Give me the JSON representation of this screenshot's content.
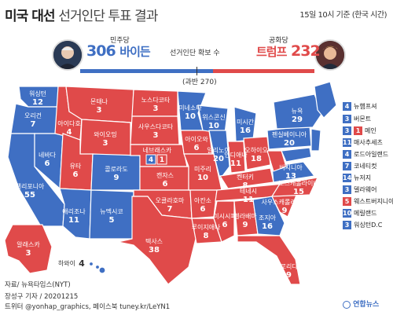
{
  "title": {
    "main": "미국 대선",
    "sub": "선거인단 투표 결과"
  },
  "date_note": "15일 10시 기준 (한국 시간)",
  "candidates": {
    "democrat": {
      "party": "민주당",
      "votes": "306",
      "name": "바이든",
      "color": "#3f6fc3"
    },
    "republican": {
      "party": "공화당",
      "votes": "232",
      "name": "트럼프",
      "color": "#e04a4a"
    }
  },
  "threshold": {
    "label": "선거인단 확보 수",
    "majority": "(과반 270)"
  },
  "states": {
    "WA": {
      "name": "워싱턴",
      "ev": "12"
    },
    "OR": {
      "name": "오리건",
      "ev": "7"
    },
    "CA": {
      "name": "캘리포니아",
      "ev": "55"
    },
    "NV": {
      "name": "네바다",
      "ev": "6"
    },
    "ID": {
      "name": "아이다호",
      "ev": "4"
    },
    "MT": {
      "name": "몬태나",
      "ev": "3"
    },
    "WY": {
      "name": "와이오밍",
      "ev": "3"
    },
    "UT": {
      "name": "유타",
      "ev": "6"
    },
    "AZ": {
      "name": "애리조나",
      "ev": "11"
    },
    "CO": {
      "name": "콜로라도",
      "ev": "9"
    },
    "NM": {
      "name": "뉴멕시코",
      "ev": "5"
    },
    "ND": {
      "name": "노스다코타",
      "ev": "3"
    },
    "SD": {
      "name": "사우스다코타",
      "ev": "3"
    },
    "NE": {
      "name": "네브래스카",
      "ev_d": "4",
      "ev_r": "1"
    },
    "KS": {
      "name": "캔자스",
      "ev": "6"
    },
    "OK": {
      "name": "오클라호마",
      "ev": "7"
    },
    "TX": {
      "name": "텍사스",
      "ev": "38"
    },
    "MN": {
      "name": "미네소타",
      "ev": "10"
    },
    "IA": {
      "name": "아이오와",
      "ev": "6"
    },
    "MO": {
      "name": "미주리",
      "ev": "10"
    },
    "AR": {
      "name": "아칸소",
      "ev": "6"
    },
    "LA": {
      "name": "루이지애나",
      "ev": "8"
    },
    "WI": {
      "name": "위스콘신",
      "ev": "10"
    },
    "IL": {
      "name": "일리노이",
      "ev": "20"
    },
    "MI": {
      "name": "미시간",
      "ev": "16"
    },
    "IN": {
      "name": "인디애나",
      "ev": "11"
    },
    "OH": {
      "name": "오하이오",
      "ev": "18"
    },
    "KY": {
      "name": "켄터키",
      "ev": "8"
    },
    "TN": {
      "name": "테네시",
      "ev": "11"
    },
    "MS": {
      "name": "미시시피",
      "ev": "6"
    },
    "AL": {
      "name": "앨라배마",
      "ev": "9"
    },
    "GA": {
      "name": "조지아",
      "ev": "16"
    },
    "FL": {
      "name": "플로리다",
      "ev": "29"
    },
    "SC": {
      "name": "사우스캐롤라이나",
      "ev": "9"
    },
    "NC": {
      "name": "노스캐롤라이나",
      "ev": "15"
    },
    "VA": {
      "name": "버지니아",
      "ev": "13"
    },
    "WV": {
      "name": "웨스트버지니아",
      "ev": "5"
    },
    "PA": {
      "name": "펜실베이니아",
      "ev": "20"
    },
    "NY": {
      "name": "뉴욕",
      "ev": "29"
    },
    "AK": {
      "name": "알래스카",
      "ev": "3"
    },
    "HI": {
      "name": "하와이",
      "ev": "4"
    }
  },
  "small_states": [
    {
      "name": "뉴햄프셔",
      "ev": "4",
      "party": "D"
    },
    {
      "name": "버몬트",
      "ev": "3",
      "party": "D"
    },
    {
      "name": "메인",
      "ev_d": "3",
      "ev_r": "1"
    },
    {
      "name": "매사추세츠",
      "ev": "11",
      "party": "D"
    },
    {
      "name": "로드아일랜드",
      "ev": "4",
      "party": "D"
    },
    {
      "name": "코네티컷",
      "ev": "7",
      "party": "D"
    },
    {
      "name": "뉴저지",
      "ev": "14",
      "party": "D"
    },
    {
      "name": "델라웨어",
      "ev": "3",
      "party": "D"
    },
    {
      "name": "웨스트버지니아",
      "ev": "5",
      "party": "R"
    },
    {
      "name": "메릴랜드",
      "ev": "10",
      "party": "D"
    },
    {
      "name": "워싱턴D.C",
      "ev": "3",
      "party": "D"
    }
  ],
  "source": "자료/ 뉴욕타임스(NYT)",
  "footer": {
    "line1": "장성구 기자 / 20201215",
    "line2": "트위터 @yonhap_graphics, 페이스북 tuney.kr/LeYN1"
  },
  "logo": "연합뉴스",
  "colors": {
    "dem": "#3f6fc3",
    "rep": "#e04a4a"
  }
}
